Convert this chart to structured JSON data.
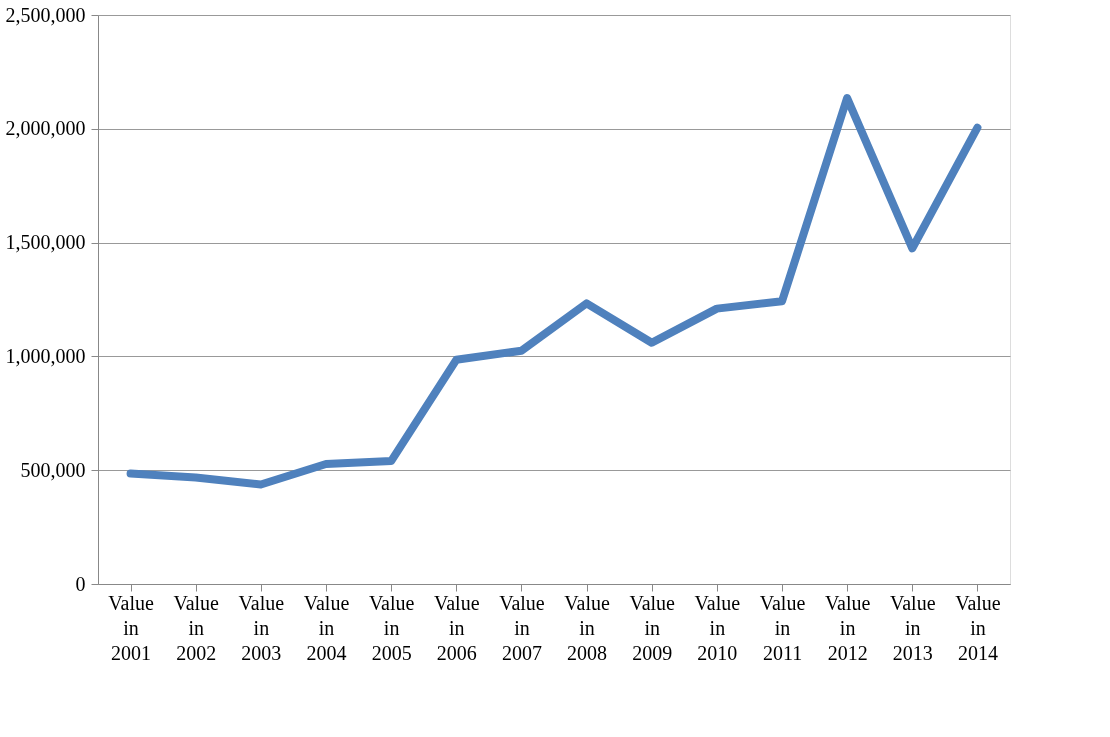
{
  "chart_data": {
    "type": "line",
    "categories": [
      "Value in 2001",
      "Value in 2002",
      "Value in 2003",
      "Value in 2004",
      "Value in 2005",
      "Value in 2006",
      "Value in 2007",
      "Value in 2008",
      "Value in 2009",
      "Value in 2010",
      "Value in 2011",
      "Value in 2012",
      "Value in 2013",
      "Value in 2014"
    ],
    "series": [
      {
        "color": "#4f81bd",
        "values": [
          485000,
          468000,
          437000,
          527000,
          540000,
          985000,
          1025000,
          1233000,
          1060000,
          1210000,
          1242000,
          2135000,
          1475000,
          2005000
        ]
      }
    ],
    "ylim": [
      0,
      2500000
    ],
    "yticks": [
      {
        "value": 0,
        "label": "0"
      },
      {
        "value": 500000,
        "label": "500,000"
      },
      {
        "value": 1000000,
        "label": "1,000,000"
      },
      {
        "value": 1500000,
        "label": "1,500,000"
      },
      {
        "value": 2000000,
        "label": "2,000,000"
      },
      {
        "value": 2500000,
        "label": "2,500,000"
      }
    ],
    "grid": "y",
    "marker": "none",
    "line_style": "solid"
  }
}
